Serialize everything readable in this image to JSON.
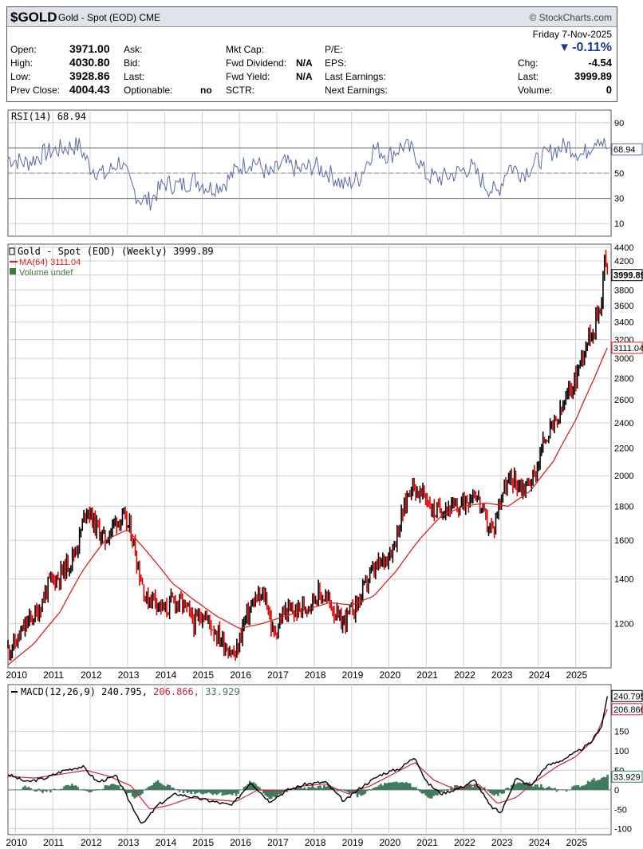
{
  "header": {
    "symbol": "$GOLD",
    "name": "Gold - Spot (EOD)",
    "exchange": "CME",
    "source": "© StockCharts.com",
    "date": "Friday 7-Nov-2025",
    "change_pct": "-0.11%",
    "change_arrow": "▼",
    "quotes": [
      {
        "label": "Open:",
        "value": "3971.00"
      },
      {
        "label": "High:",
        "value": "4030.80"
      },
      {
        "label": "Low:",
        "value": "3928.86"
      },
      {
        "label": "Prev Close:",
        "value": "4004.43"
      }
    ],
    "col2": [
      {
        "label": "Ask:",
        "value": ""
      },
      {
        "label": "Bid:",
        "value": ""
      },
      {
        "label": "Last:",
        "value": ""
      },
      {
        "label": "Optionable:",
        "value": "no"
      }
    ],
    "col3": [
      {
        "label": "Mkt Cap:",
        "value": ""
      },
      {
        "label": "Fwd Dividend:",
        "value": "N/A"
      },
      {
        "label": "Fwd Yield:",
        "value": "N/A"
      },
      {
        "label": "SCTR:",
        "value": ""
      }
    ],
    "col4": [
      "P/E:",
      "EPS:",
      "Last Earnings:",
      "Next Earnings:"
    ],
    "right": [
      {
        "label": "Chg:",
        "value": "-4.54"
      },
      {
        "label": "Last:",
        "value": "3999.89"
      },
      {
        "label": "Volume:",
        "value": "0"
      }
    ]
  },
  "colors": {
    "price_bar": "#000000",
    "price_down": "#dd0000",
    "ma": "#dd2222",
    "rsi": "#5a6aa8",
    "macd": "#000000",
    "signal": "#cc2244",
    "histogram": "#3f7a5c",
    "grid": "#d0d0d0"
  },
  "chart_data": [
    {
      "type": "line",
      "name": "RSI panel",
      "legend": "RSI(14) 68.94",
      "x_years": [
        2010,
        2011,
        2012,
        2013,
        2014,
        2015,
        2016,
        2017,
        2018,
        2019,
        2020,
        2021,
        2022,
        2023,
        2024,
        2025
      ],
      "yticks": [
        10,
        30,
        50,
        70,
        90
      ],
      "ylim": [
        0,
        100
      ],
      "last_value_label": "68.94",
      "series": [
        {
          "name": "RSI(14)",
          "x": [
            2009.8,
            2010.3,
            2010.8,
            2011.3,
            2011.7,
            2012.0,
            2012.4,
            2012.8,
            2013.1,
            2013.3,
            2013.6,
            2014.0,
            2014.4,
            2014.8,
            2015.2,
            2015.6,
            2016.0,
            2016.4,
            2016.8,
            2017.2,
            2017.6,
            2018.0,
            2018.4,
            2018.8,
            2019.2,
            2019.6,
            2020.0,
            2020.4,
            2020.7,
            2021.0,
            2021.4,
            2021.8,
            2022.2,
            2022.6,
            2022.9,
            2023.2,
            2023.6,
            2024.0,
            2024.4,
            2024.8,
            2025.2,
            2025.6,
            2025.85
          ],
          "values": [
            62,
            58,
            66,
            70,
            72,
            55,
            48,
            60,
            40,
            30,
            28,
            42,
            40,
            45,
            38,
            42,
            55,
            60,
            48,
            58,
            52,
            56,
            50,
            40,
            46,
            70,
            64,
            72,
            66,
            48,
            46,
            50,
            55,
            40,
            34,
            56,
            50,
            60,
            68,
            72,
            64,
            80,
            68.94
          ]
        }
      ]
    },
    {
      "type": "line",
      "name": "Price panel",
      "legend": [
        "Gold - Spot (EOD) (Weekly) 3999.89",
        "MA(64) 3111.04",
        "Volume undef"
      ],
      "x_years": [
        2010,
        2011,
        2012,
        2013,
        2014,
        2015,
        2016,
        2017,
        2018,
        2019,
        2020,
        2021,
        2022,
        2023,
        2024,
        2025
      ],
      "yticks": [
        1200,
        1400,
        1600,
        1800,
        2000,
        2200,
        2400,
        2600,
        2800,
        3000,
        3200,
        3400,
        3600,
        3800,
        4000,
        4200,
        4400
      ],
      "ylim": [
        1030,
        4450
      ],
      "log_scale": true,
      "last_value_labels": [
        "3999.89",
        "3111.04"
      ],
      "series": [
        {
          "name": "Gold - Spot (EOD)",
          "x": [
            2009.8,
            2010.0,
            2010.3,
            2010.6,
            2010.9,
            2011.2,
            2011.5,
            2011.7,
            2011.9,
            2012.1,
            2012.4,
            2012.7,
            2012.9,
            2013.1,
            2013.3,
            2013.5,
            2013.7,
            2014.0,
            2014.2,
            2014.5,
            2014.8,
            2015.0,
            2015.3,
            2015.6,
            2015.9,
            2016.1,
            2016.4,
            2016.7,
            2016.9,
            2017.2,
            2017.5,
            2017.8,
            2018.1,
            2018.4,
            2018.7,
            2018.9,
            2019.2,
            2019.5,
            2019.8,
            2020.1,
            2020.3,
            2020.6,
            2020.8,
            2021.0,
            2021.2,
            2021.5,
            2021.8,
            2022.1,
            2022.3,
            2022.6,
            2022.8,
            2023.0,
            2023.3,
            2023.6,
            2023.9,
            2024.2,
            2024.5,
            2024.8,
            2025.0,
            2025.3,
            2025.5,
            2025.7,
            2025.78,
            2025.85
          ],
          "values": [
            1100,
            1120,
            1200,
            1250,
            1380,
            1420,
            1500,
            1600,
            1800,
            1700,
            1600,
            1720,
            1720,
            1650,
            1450,
            1300,
            1320,
            1250,
            1300,
            1280,
            1200,
            1250,
            1180,
            1120,
            1070,
            1200,
            1300,
            1320,
            1150,
            1250,
            1250,
            1280,
            1330,
            1300,
            1200,
            1230,
            1300,
            1420,
            1480,
            1560,
            1700,
            1950,
            1880,
            1860,
            1760,
            1800,
            1780,
            1850,
            1900,
            1700,
            1650,
            1880,
            1980,
            1920,
            2000,
            2300,
            2400,
            2650,
            2800,
            3200,
            3350,
            3700,
            4300,
            3999.89
          ]
        },
        {
          "name": "MA(64)",
          "x": [
            2009.8,
            2010.5,
            2011.2,
            2011.8,
            2012.4,
            2013.0,
            2013.6,
            2014.2,
            2014.8,
            2015.4,
            2016.0,
            2016.6,
            2017.2,
            2017.8,
            2018.4,
            2019.0,
            2019.6,
            2020.2,
            2020.8,
            2021.4,
            2022.0,
            2022.6,
            2023.2,
            2023.8,
            2024.4,
            2025.0,
            2025.5,
            2025.85
          ],
          "values": [
            1040,
            1120,
            1250,
            1440,
            1600,
            1660,
            1520,
            1380,
            1300,
            1230,
            1180,
            1200,
            1230,
            1260,
            1290,
            1280,
            1320,
            1440,
            1600,
            1740,
            1800,
            1820,
            1800,
            1900,
            2100,
            2420,
            2800,
            3111.04
          ]
        }
      ]
    },
    {
      "type": "line",
      "name": "MACD panel",
      "legend": [
        "MACD(12,26,9) 240.795",
        "206.866",
        "33.929"
      ],
      "x_years": [
        2010,
        2011,
        2012,
        2013,
        2014,
        2015,
        2016,
        2017,
        2018,
        2019,
        2020,
        2021,
        2022,
        2023,
        2024,
        2025
      ],
      "yticks": [
        -100,
        -50,
        0,
        50,
        100,
        150
      ],
      "ylim": [
        -115,
        270
      ],
      "last_value_labels": [
        "240.795",
        "206.866",
        "33.929"
      ],
      "series": [
        {
          "name": "MACD",
          "x": [
            2009.8,
            2010.3,
            2010.8,
            2011.3,
            2011.8,
            2012.2,
            2012.7,
            2013.0,
            2013.4,
            2013.8,
            2014.3,
            2014.8,
            2015.3,
            2015.8,
            2016.3,
            2016.8,
            2017.3,
            2017.8,
            2018.3,
            2018.8,
            2019.3,
            2019.8,
            2020.3,
            2020.7,
            2021.0,
            2021.4,
            2021.9,
            2022.3,
            2022.7,
            2023.0,
            2023.4,
            2023.8,
            2024.2,
            2024.6,
            2025.0,
            2025.4,
            2025.7,
            2025.85
          ],
          "values": [
            40,
            20,
            30,
            50,
            60,
            20,
            35,
            -20,
            -90,
            -40,
            -10,
            -20,
            -30,
            -40,
            20,
            -30,
            0,
            15,
            20,
            -30,
            10,
            40,
            55,
            85,
            20,
            -10,
            5,
            25,
            -40,
            -60,
            30,
            10,
            60,
            75,
            95,
            120,
            165,
            240.795
          ]
        },
        {
          "name": "Signal",
          "x": [
            2009.8,
            2010.5,
            2011.2,
            2011.9,
            2012.5,
            2013.1,
            2013.6,
            2014.1,
            2014.7,
            2015.3,
            2015.9,
            2016.5,
            2017.1,
            2017.7,
            2018.3,
            2018.9,
            2019.5,
            2020.1,
            2020.7,
            2021.2,
            2021.8,
            2022.4,
            2022.9,
            2023.4,
            2023.9,
            2024.5,
            2025.0,
            2025.5,
            2025.85
          ],
          "values": [
            35,
            30,
            40,
            50,
            35,
            10,
            -50,
            -40,
            -20,
            -25,
            -30,
            0,
            -5,
            10,
            15,
            -10,
            10,
            40,
            70,
            25,
            0,
            15,
            -35,
            -20,
            20,
            60,
            85,
            130,
            206.866
          ]
        },
        {
          "name": "Histogram",
          "x": [
            2010.2,
            2010.8,
            2011.5,
            2012.0,
            2012.6,
            2013.2,
            2013.8,
            2014.5,
            2015.2,
            2015.9,
            2016.3,
            2016.8,
            2017.5,
            2018.4,
            2019.2,
            2019.8,
            2020.5,
            2021.1,
            2021.7,
            2022.4,
            2022.9,
            2023.4,
            2024.0,
            2024.6,
            2025.2,
            2025.6,
            2025.85
          ],
          "values": [
            8,
            -6,
            12,
            -10,
            18,
            -20,
            22,
            -6,
            -8,
            -14,
            24,
            -22,
            6,
            8,
            -16,
            14,
            20,
            -24,
            8,
            12,
            -18,
            20,
            12,
            -4,
            14,
            30,
            33.929
          ]
        }
      ]
    }
  ]
}
